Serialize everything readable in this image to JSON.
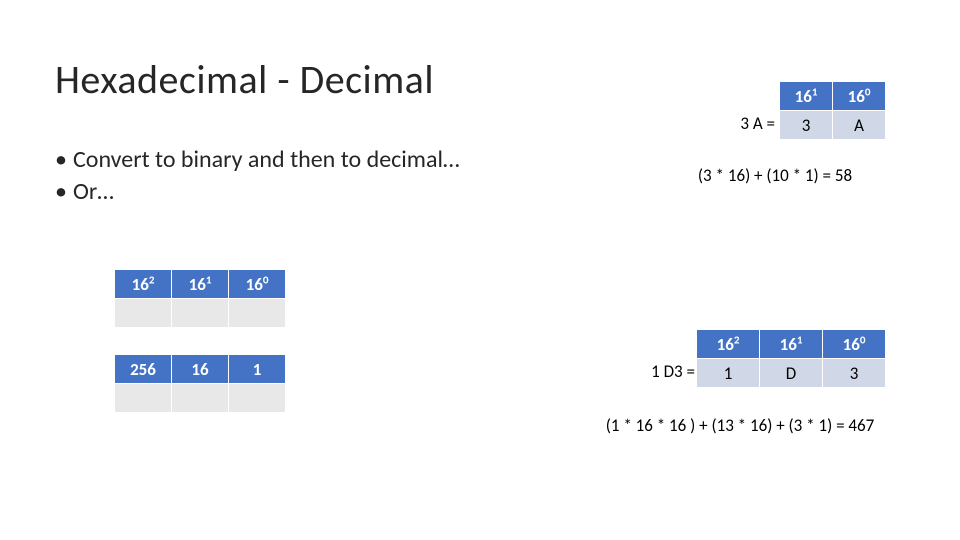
{
  "title": "Hexadecimal - Decimal",
  "bullets": {
    "b1": "Convert to binary and then to decimal…",
    "b2": "Or…"
  },
  "colors": {
    "header_bg": "#4472c4",
    "header_fg": "#ffffff",
    "alt_bg": "#e8e8e8",
    "alt2_bg": "#d0d8e8",
    "page_bg": "#ffffff",
    "text": "#000000"
  },
  "example1": {
    "label": "3 A =",
    "headers_base": "16",
    "exp0": "1",
    "exp1": "0",
    "v0": "3",
    "v1": "A",
    "formula": "(3 * 16) + (10 * 1) = 58"
  },
  "left_table1": {
    "base": "16",
    "e0": "2",
    "e1": "1",
    "e2": "0"
  },
  "left_table2": {
    "v0": "256",
    "v1": "16",
    "v2": "1"
  },
  "example2": {
    "label": "1 D3 =",
    "base": "16",
    "e0": "2",
    "e1": "1",
    "e2": "0",
    "v0": "1",
    "v1": "D",
    "v2": "3",
    "formula": "(1 * 16 * 16 ) + (13 * 16) + (3 * 1) = 467"
  }
}
